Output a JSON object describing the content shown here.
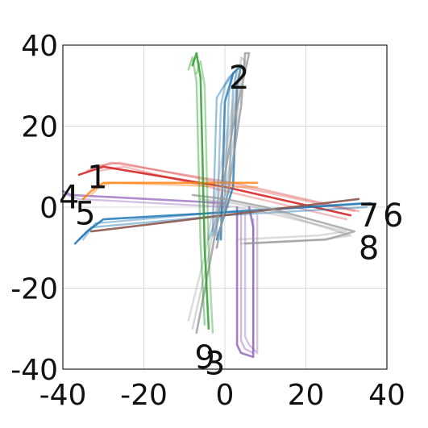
{
  "chart_data": {
    "type": "line",
    "title": "",
    "xlabel": "",
    "ylabel": "",
    "xlim": [
      -40,
      40
    ],
    "ylim": [
      -40,
      40
    ],
    "xticks": [
      -40,
      -20,
      0,
      20,
      40
    ],
    "yticks": [
      -40,
      -20,
      0,
      20,
      40
    ],
    "xtick_labels": [
      "-40",
      "-20",
      "0",
      "20",
      "40"
    ],
    "ytick_labels": [
      "-40",
      "-20",
      "0",
      "20",
      "40"
    ],
    "grid": true,
    "series": [
      {
        "label": "1",
        "color": "#d62728",
        "label_at": [
          -34,
          7.5
        ],
        "traces": [
          {
            "x": [
              -36,
              -30,
              0,
              31
            ],
            "y": [
              8,
              10,
              5,
              -2
            ],
            "opacity": 0.9
          },
          {
            "x": [
              -34,
              -28,
              2,
              33
            ],
            "y": [
              9,
              11,
              6,
              -1
            ],
            "opacity": 0.35
          },
          {
            "x": [
              -32,
              -26,
              4,
              32
            ],
            "y": [
              10,
              11,
              5,
              -1
            ],
            "opacity": 0.3
          },
          {
            "x": [
              -31,
              -25,
              0,
              30
            ],
            "y": [
              9,
              10,
              4,
              -3
            ],
            "opacity": 0.3
          }
        ]
      },
      {
        "label": "2",
        "color": "#1f77b4",
        "label_at": [
          1,
          32
        ],
        "traces": [
          {
            "x": [
              -1,
              0,
              2,
              4,
              3,
              2,
              -2
            ],
            "y": [
              -8,
              26,
              33,
              35,
              30,
              5,
              -8
            ],
            "opacity": 0.8
          },
          {
            "x": [
              -3,
              -2,
              1,
              3,
              2,
              1,
              -3
            ],
            "y": [
              -6,
              27,
              32,
              34,
              29,
              4,
              -7
            ],
            "opacity": 0.45
          },
          {
            "x": [
              -2,
              -1,
              0,
              2,
              1,
              0,
              -4
            ],
            "y": [
              -7,
              25,
              30,
              33,
              28,
              3,
              -8
            ],
            "opacity": 0.4
          }
        ]
      },
      {
        "label": "3",
        "color": "#9467bd",
        "label_at": [
          -5,
          -38.5
        ],
        "traces": [
          {
            "x": [
              3,
              3,
              4,
              7,
              7,
              6
            ],
            "y": [
              0,
              -34,
              -36,
              -37,
              -5,
              0
            ],
            "opacity": 0.85
          },
          {
            "x": [
              4,
              4,
              5,
              7,
              7
            ],
            "y": [
              -1,
              -33,
              -35,
              -36,
              -3
            ],
            "opacity": 0.45
          },
          {
            "x": [
              5,
              5,
              6,
              8,
              8
            ],
            "y": [
              -2,
              -32,
              -34,
              -36,
              -2
            ],
            "opacity": 0.4
          }
        ]
      },
      {
        "label": "4",
        "color": "#9467bd",
        "label_at": [
          -41,
          2.5
        ],
        "traces": [
          {
            "x": [
              -40,
              -38,
              0
            ],
            "y": [
              4,
              3,
              1
            ],
            "opacity": 0.75
          },
          {
            "x": [
              -39,
              -36,
              1
            ],
            "y": [
              3,
              2,
              0
            ],
            "opacity": 0.4
          }
        ]
      },
      {
        "label": "5",
        "color": "#ff7f0e",
        "label_at": [
          -37,
          -1.5
        ],
        "traces": [
          {
            "x": [
              -35,
              -33,
              -30,
              2,
              8
            ],
            "y": [
              2,
              4,
              6,
              6,
              6
            ],
            "opacity": 0.8
          },
          {
            "x": [
              -33,
              -31,
              -28,
              3,
              8
            ],
            "y": [
              3,
              5,
              6,
              5,
              5
            ],
            "opacity": 0.4
          }
        ]
      },
      {
        "label": "6",
        "color": "#1f77b4",
        "label_at": [
          39,
          -2
        ],
        "traces": [
          {
            "x": [
              -37,
              -34,
              -30,
              5,
              36
            ],
            "y": [
              -9,
              -6,
              -3,
              -1,
              1
            ],
            "opacity": 0.85
          },
          {
            "x": [
              -36,
              -33,
              0,
              35
            ],
            "y": [
              -8,
              -5,
              -2,
              0
            ],
            "opacity": 0.45
          },
          {
            "x": [
              -35,
              -32,
              2,
              34
            ],
            "y": [
              -8,
              -4,
              -1,
              1
            ],
            "opacity": 0.4
          }
        ]
      },
      {
        "label": "7",
        "color": "#8c564b",
        "label_at": [
          33,
          -2
        ],
        "traces": [
          {
            "x": [
              -33,
              33
            ],
            "y": [
              -6,
              2
            ],
            "opacity": 0.9
          }
        ]
      },
      {
        "label": "8",
        "color": "#999999",
        "label_at": [
          33,
          -10
        ],
        "traces": [
          {
            "x": [
              -8,
              0,
              10,
              32,
              25,
              5
            ],
            "y": [
              3,
              2,
              0,
              -6,
              -8,
              -9
            ],
            "opacity": 0.75
          },
          {
            "x": [
              -6,
              2,
              12,
              31,
              24,
              4
            ],
            "y": [
              2,
              1,
              -1,
              -7,
              -8,
              -9
            ],
            "opacity": 0.4
          },
          {
            "x": [
              -4,
              3,
              13,
              30,
              23,
              3
            ],
            "y": [
              1,
              0,
              -2,
              -6,
              -7,
              -8
            ],
            "opacity": 0.35
          }
        ]
      },
      {
        "label": "9",
        "color": "#999999",
        "label_at": [
          -7.5,
          -37
        ],
        "traces": [
          {
            "x": [
              -7,
              -3,
              2,
              6,
              5,
              4,
              1,
              -2
            ],
            "y": [
              -31,
              -10,
              20,
              38,
              38,
              25,
              5,
              -10
            ],
            "opacity": 0.8
          },
          {
            "x": [
              -8,
              -4,
              1,
              5,
              4,
              3,
              0
            ],
            "y": [
              -30,
              -12,
              18,
              36,
              37,
              22,
              3
            ],
            "opacity": 0.4
          },
          {
            "x": [
              -9,
              -5,
              0,
              4,
              3,
              2
            ],
            "y": [
              -28,
              -12,
              16,
              35,
              35,
              20
            ],
            "opacity": 0.35
          }
        ]
      },
      {
        "label": "",
        "color": "#2ca02c",
        "label_at": null,
        "traces": [
          {
            "x": [
              -8,
              -7,
              -6,
              -5,
              -4
            ],
            "y": [
              35,
              38,
              32,
              -10,
              -30
            ],
            "opacity": 0.85
          },
          {
            "x": [
              -9,
              -8,
              -7,
              -6,
              -5
            ],
            "y": [
              34,
              37,
              31,
              -9,
              -29
            ],
            "opacity": 0.45
          },
          {
            "x": [
              -7,
              -6,
              -5,
              -4,
              -3
            ],
            "y": [
              33,
              36,
              30,
              -11,
              -31
            ],
            "opacity": 0.4
          }
        ]
      }
    ]
  }
}
